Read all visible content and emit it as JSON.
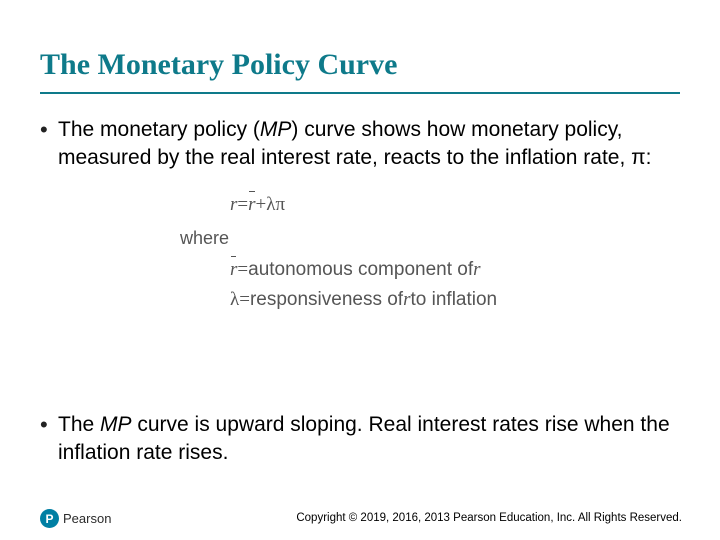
{
  "title": "The Monetary Policy Curve",
  "bullets": {
    "b1_prefix": "The monetary policy (",
    "b1_mp": "MP",
    "b1_mid": ") curve shows how monetary policy, measured by the real interest rate, reacts to the inflation rate, ",
    "b1_pi": "π",
    "b1_suffix": ":",
    "b2_prefix": "The ",
    "b2_mp": "MP",
    "b2_suffix": " curve is upward sloping. Real interest rates rise when the inflation rate rises."
  },
  "equation": {
    "main_r": "r",
    "eq_sign": " = ",
    "r_bar": "r",
    "plus": " + ",
    "lambda": "λ",
    "pi": "π",
    "where": "where",
    "line2_lhs": "r",
    "line2_eq": " = ",
    "line2_rhs_a": "autonomous component of ",
    "line2_rhs_b": "r",
    "line3_lhs": "λ",
    "line3_eq": " = ",
    "line3_rhs_a": "responsiveness of ",
    "line3_rhs_b": "r",
    "line3_rhs_c": " to inflation"
  },
  "footer": "Copyright © 2019, 2016, 2013 Pearson Education, Inc. All Rights Reserved.",
  "logo_letter": "P",
  "logo_text": "Pearson",
  "colors": {
    "accent": "#0e7a8a",
    "eq_text": "#555555",
    "background": "#ffffff"
  }
}
